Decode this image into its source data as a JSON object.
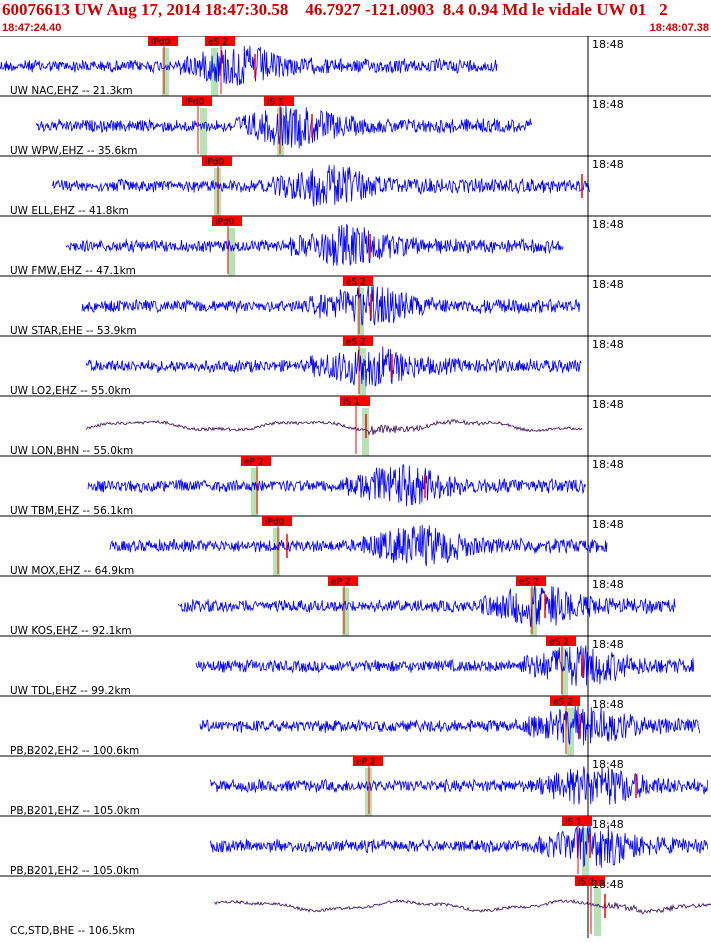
{
  "header": {
    "title": "60076613 UW Aug 17, 2014 18:47:30.58    46.7927 -121.0903  8.4 0.94 Md le vidale UW 01   2",
    "start_time": "18:47:24.40",
    "end_time": "18:48:07.38"
  },
  "colors": {
    "title": "#cc0000",
    "time_labels": "#cc0000",
    "trace_short_period": "#0000ff",
    "trace_broadband": "#3a0a60",
    "pick_box": "#ff0000",
    "pick_text": "#000000",
    "pick_band": "#b6e2b6",
    "label_text": "#000000",
    "grid": "#000000"
  },
  "time_marker_label": "18:48",
  "traces": [
    {
      "label": "UW NAC,EHZ -- 21.3km",
      "x_start": 0,
      "x_end": 497,
      "burst": 240,
      "kind": "sp",
      "picks": [
        {
          "text": "iPd0",
          "x": 148,
          "solid": true,
          "band": 165
        },
        {
          "text": "eS 2",
          "x": 205,
          "solid": false,
          "band": 214
        }
      ],
      "red_x": 255
    },
    {
      "label": "UW WPW,EHZ -- 35.6km",
      "x_start": 36,
      "x_end": 532,
      "burst": 295,
      "kind": "sp",
      "picks": [
        {
          "text": "iPd0",
          "x": 182,
          "solid": true,
          "band": 203
        },
        {
          "text": "iS 1",
          "x": 264,
          "solid": false,
          "band": 280
        }
      ],
      "red_x": 312
    },
    {
      "label": "UW ELL,EHZ -- 41.8km",
      "x_start": 52,
      "x_end": 590,
      "burst": 330,
      "kind": "sp",
      "picks": [
        {
          "text": "iPd0",
          "x": 202,
          "solid": true,
          "band": 217
        }
      ],
      "red_x": 582
    },
    {
      "label": "UW FMW,EHZ -- 47.1km",
      "x_start": 66,
      "x_end": 563,
      "burst": 350,
      "kind": "sp",
      "picks": [
        {
          "text": "iPd0",
          "x": 212,
          "solid": true,
          "band": 231
        }
      ],
      "red_x": 370
    },
    {
      "label": "UW STAR,EHE -- 53.9km",
      "x_start": 82,
      "x_end": 580,
      "burst": 370,
      "kind": "sp",
      "picks": [
        {
          "text": "eS 2",
          "x": 343,
          "solid": false,
          "band": 360
        }
      ],
      "red_x": 371
    },
    {
      "label": "UW LO2,EHZ -- 55.0km",
      "x_start": 86,
      "x_end": 582,
      "burst": 370,
      "kind": "sp",
      "picks": [
        {
          "text": "eS 2",
          "x": 343,
          "solid": false,
          "band": 362
        }
      ],
      "red_x": 392
    },
    {
      "label": "UW LON,BHN -- 55.0km",
      "x_start": 86,
      "x_end": 582,
      "burst": 368,
      "kind": "bb",
      "picks": [
        {
          "text": "iS 1",
          "x": 340,
          "solid": false,
          "band": 365
        }
      ],
      "red_x": 366
    },
    {
      "label": "UW TBM,EHZ -- 56.1km",
      "x_start": 88,
      "x_end": 586,
      "burst": 400,
      "kind": "sp",
      "picks": [
        {
          "text": "eP 2",
          "x": 241,
          "solid": false,
          "band": 254
        }
      ],
      "red_x": 425
    },
    {
      "label": "UW MOX,EHZ -- 64.9km",
      "x_start": 110,
      "x_end": 607,
      "burst": 420,
      "kind": "sp",
      "picks": [
        {
          "text": "iPd0",
          "x": 262,
          "solid": true,
          "band": 276
        }
      ],
      "red_x": 287
    },
    {
      "label": "UW KOS,EHZ -- 92.1km",
      "x_start": 178,
      "x_end": 676,
      "burst": 540,
      "kind": "sp",
      "picks": [
        {
          "text": "eP 2",
          "x": 328,
          "solid": false,
          "band": 345
        },
        {
          "text": "eS 2",
          "x": 516,
          "solid": false,
          "band": 533
        }
      ],
      "red_x": 545
    },
    {
      "label": "UW TDL,EHZ -- 99.2km",
      "x_start": 196,
      "x_end": 694,
      "burst": 580,
      "kind": "sp",
      "picks": [
        {
          "text": "eS 2",
          "x": 546,
          "solid": false,
          "band": 564
        }
      ],
      "red_x": 583
    },
    {
      "label": "PB,B202,EH2 -- 100.6km",
      "x_start": 200,
      "x_end": 700,
      "burst": 585,
      "kind": "sp",
      "picks": [
        {
          "text": "eS 2",
          "x": 550,
          "solid": false,
          "band": 570
        }
      ],
      "red_x": 580
    },
    {
      "label": "PB,B201,EHZ -- 105.0km",
      "x_start": 210,
      "x_end": 708,
      "burst": 598,
      "kind": "sp",
      "picks": [
        {
          "text": "eP 2",
          "x": 353,
          "solid": false,
          "band": 368
        }
      ],
      "red_x": 636
    },
    {
      "label": "PB,B201,EH2 -- 105.0km",
      "x_start": 210,
      "x_end": 708,
      "burst": 598,
      "kind": "sp",
      "picks": [
        {
          "text": "iS 1",
          "x": 562,
          "solid": false,
          "band": 585
        }
      ],
      "red_x": 590
    },
    {
      "label": "CC,STD,BHE -- 106.5km",
      "x_start": 214,
      "x_end": 711,
      "burst": 598,
      "kind": "bb",
      "picks": [
        {
          "text": "iS 1",
          "x": 575,
          "solid": false,
          "band": 597
        }
      ],
      "red_x": 605
    }
  ]
}
